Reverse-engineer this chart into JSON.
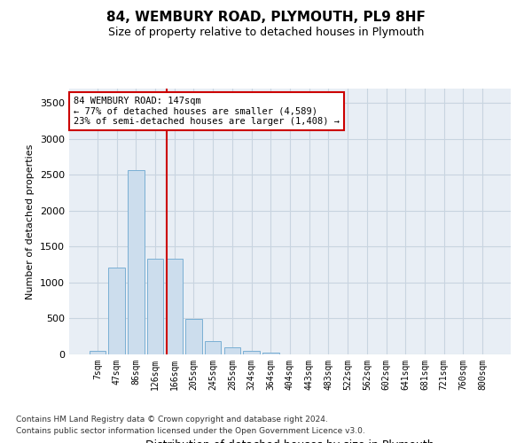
{
  "title": "84, WEMBURY ROAD, PLYMOUTH, PL9 8HF",
  "subtitle": "Size of property relative to detached houses in Plymouth",
  "xlabel": "Distribution of detached houses by size in Plymouth",
  "ylabel": "Number of detached properties",
  "footnote1": "Contains HM Land Registry data © Crown copyright and database right 2024.",
  "footnote2": "Contains public sector information licensed under the Open Government Licence v3.0.",
  "categories": [
    "7sqm",
    "47sqm",
    "86sqm",
    "126sqm",
    "166sqm",
    "205sqm",
    "245sqm",
    "285sqm",
    "324sqm",
    "364sqm",
    "404sqm",
    "443sqm",
    "483sqm",
    "522sqm",
    "562sqm",
    "602sqm",
    "641sqm",
    "681sqm",
    "721sqm",
    "760sqm",
    "800sqm"
  ],
  "values": [
    55,
    1210,
    2560,
    1330,
    1330,
    490,
    190,
    100,
    50,
    30,
    5,
    0,
    0,
    0,
    0,
    0,
    0,
    0,
    0,
    0,
    0
  ],
  "bar_color": "#ccdded",
  "bar_edge_color": "#7aafd4",
  "grid_color": "#c8d4e0",
  "bg_color": "#e8eef5",
  "vline_color": "#cc0000",
  "annotation_box_color": "#cc0000",
  "ylim": [
    0,
    3700
  ],
  "yticks": [
    0,
    500,
    1000,
    1500,
    2000,
    2500,
    3000,
    3500
  ],
  "vline_pos": 3.58,
  "annotation_text_line1": "84 WEMBURY ROAD: 147sqm",
  "annotation_text_line2": "← 77% of detached houses are smaller (4,589)",
  "annotation_text_line3": "23% of semi-detached houses are larger (1,408) →"
}
